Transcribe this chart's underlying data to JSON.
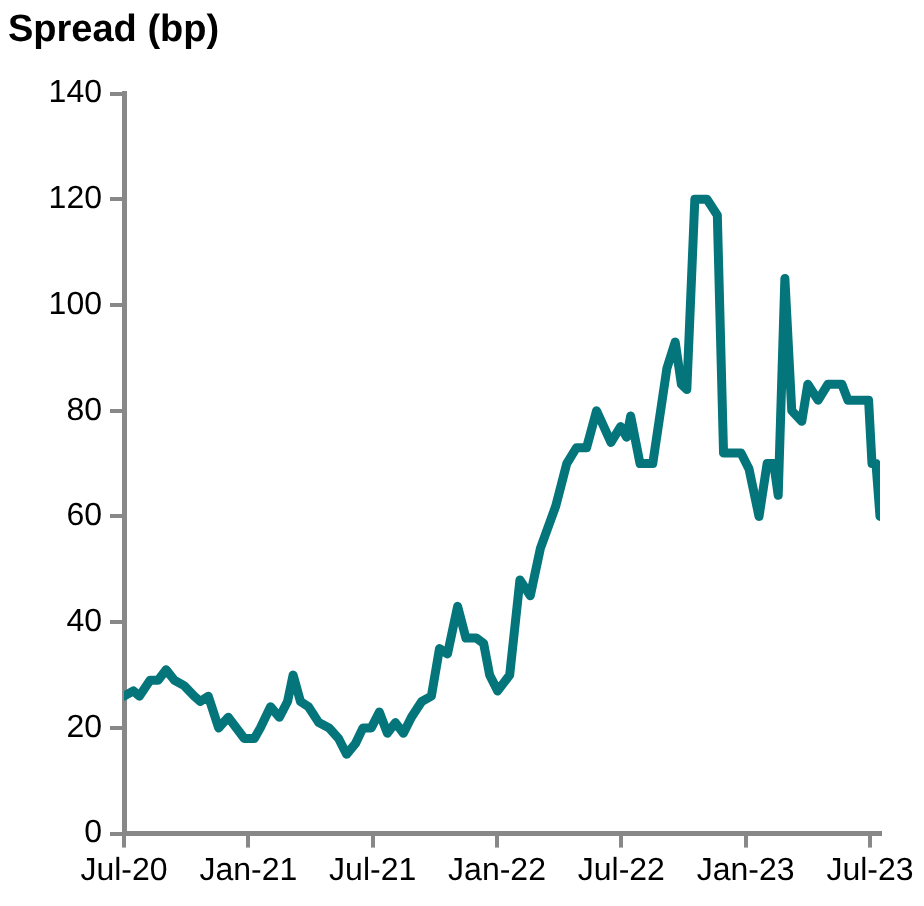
{
  "chart_data": {
    "type": "line",
    "title": "Spread (bp)",
    "color": "#04757a",
    "marker": "none",
    "line_style": "solid",
    "grid": false,
    "legend": false,
    "x": [
      "2020-07-01",
      "2020-07-15",
      "2020-07-24",
      "2020-08-09",
      "2020-08-21",
      "2020-09-02",
      "2020-09-14",
      "2020-09-28",
      "2020-10-13",
      "2020-10-22",
      "2020-11-03",
      "2020-11-18",
      "2020-12-02",
      "2020-12-26",
      "2021-01-10",
      "2021-01-19",
      "2021-02-03",
      "2021-02-15",
      "2021-02-26",
      "2021-03-06",
      "2021-03-17",
      "2021-03-29",
      "2021-04-13",
      "2021-04-28",
      "2021-05-12",
      "2021-05-24",
      "2021-06-06",
      "2021-06-17",
      "2021-06-29",
      "2021-07-11",
      "2021-07-23",
      "2021-08-04",
      "2021-08-16",
      "2021-08-28",
      "2021-09-12",
      "2021-09-26",
      "2021-10-08",
      "2021-10-20",
      "2021-11-04",
      "2021-11-16",
      "2021-12-01",
      "2021-12-12",
      "2021-12-21",
      "2022-01-02",
      "2022-01-20",
      "2022-02-04",
      "2022-02-18",
      "2022-03-04",
      "2022-03-27",
      "2022-04-12",
      "2022-04-26",
      "2022-05-11",
      "2022-05-26",
      "2022-06-16",
      "2022-06-30",
      "2022-07-09",
      "2022-07-15",
      "2022-07-29",
      "2022-08-17",
      "2022-09-07",
      "2022-09-19",
      "2022-09-28",
      "2022-10-06",
      "2022-10-18",
      "2022-11-05",
      "2022-11-20",
      "2022-11-29",
      "2022-12-25",
      "2023-01-06",
      "2023-01-21",
      "2023-02-02",
      "2023-02-11",
      "2023-02-17",
      "2023-02-26",
      "2023-03-08",
      "2023-03-23",
      "2023-04-01",
      "2023-04-16",
      "2023-04-30",
      "2023-05-21",
      "2023-05-30",
      "2023-06-29",
      "2023-07-04",
      "2023-07-10",
      "2023-07-16"
    ],
    "values": [
      26,
      27,
      26,
      29,
      29,
      31,
      29,
      28,
      26,
      25,
      26,
      20,
      22,
      18,
      18,
      20,
      24,
      22,
      25,
      30,
      25,
      24,
      21,
      20,
      18,
      15,
      17,
      20,
      20,
      23,
      19,
      21,
      19,
      22,
      25,
      26,
      35,
      34,
      43,
      37,
      37,
      36,
      30,
      27,
      30,
      48,
      45,
      54,
      62,
      70,
      73,
      73,
      80,
      74,
      77,
      75,
      79,
      70,
      70,
      88,
      93,
      85,
      84,
      120,
      120,
      117,
      72,
      72,
      69,
      60,
      70,
      70,
      64,
      105,
      80,
      78,
      85,
      82,
      85,
      85,
      82,
      82,
      70,
      70,
      60
    ],
    "xlim": [
      "2020-07-01",
      "2023-07-16"
    ],
    "xticks": [
      {
        "value": "2020-07-01",
        "label": "Jul-20"
      },
      {
        "value": "2021-01-01",
        "label": "Jan-21"
      },
      {
        "value": "2021-07-01",
        "label": "Jul-21"
      },
      {
        "value": "2022-01-01",
        "label": "Jan-22"
      },
      {
        "value": "2022-07-01",
        "label": "Jul-22"
      },
      {
        "value": "2023-01-01",
        "label": "Jan-23"
      },
      {
        "value": "2023-07-01",
        "label": "Jul-23"
      }
    ],
    "ylim": [
      0,
      140
    ],
    "yticks": [
      0,
      20,
      40,
      60,
      80,
      100,
      120,
      140
    ]
  }
}
